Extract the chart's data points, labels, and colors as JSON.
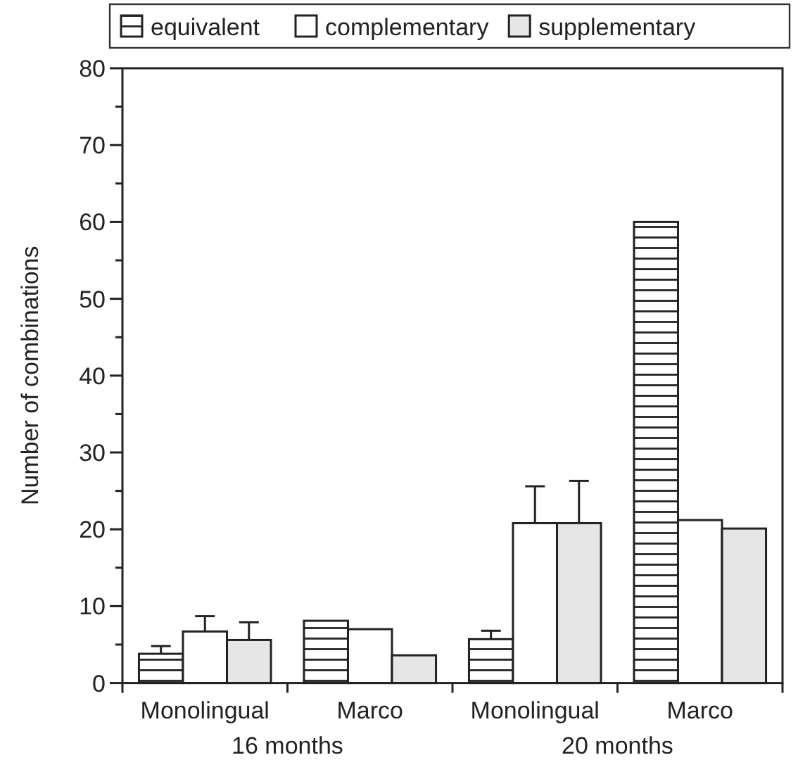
{
  "chart_data": {
    "type": "bar",
    "ylabel": "Number of combinations",
    "categories": [
      "Monolingual",
      "Marco",
      "Monolingual",
      "Marco"
    ],
    "annotations": [
      "16 months",
      "20 months"
    ],
    "series": [
      {
        "name": "equivalent",
        "color": "#222222",
        "values": [
          3.8,
          8.1,
          5.7,
          60
        ],
        "errors": [
          [
            3.8,
            4.8
          ],
          null,
          [
            5.7,
            6.8
          ],
          null
        ]
      },
      {
        "name": "complementary",
        "color": "#ffffff",
        "values": [
          6.7,
          7.0,
          20.8,
          21.2
        ],
        "errors": [
          [
            6.7,
            8.7
          ],
          null,
          [
            20.8,
            25.6
          ],
          null
        ]
      },
      {
        "name": "supplementary",
        "color": "#e6e6e6",
        "values": [
          5.6,
          3.6,
          20.8,
          20.1
        ],
        "errors": [
          [
            5.6,
            7.9
          ],
          null,
          [
            20.8,
            26.3
          ],
          null
        ]
      }
    ],
    "ylim": [
      0,
      80
    ],
    "yticks": [
      0,
      {
        "value": 5,
        "label": null
      },
      10,
      {
        "value": 15,
        "label": null
      },
      20,
      {
        "value": 25,
        "label": null
      },
      30,
      {
        "value": 35,
        "label": null
      },
      40,
      {
        "value": 45,
        "label": null
      },
      50,
      {
        "value": 55,
        "label": null
      },
      60,
      {
        "value": 65,
        "label": null
      },
      70,
      {
        "value": 75,
        "label": null
      },
      80
    ],
    "grid": false,
    "legend": "top"
  }
}
